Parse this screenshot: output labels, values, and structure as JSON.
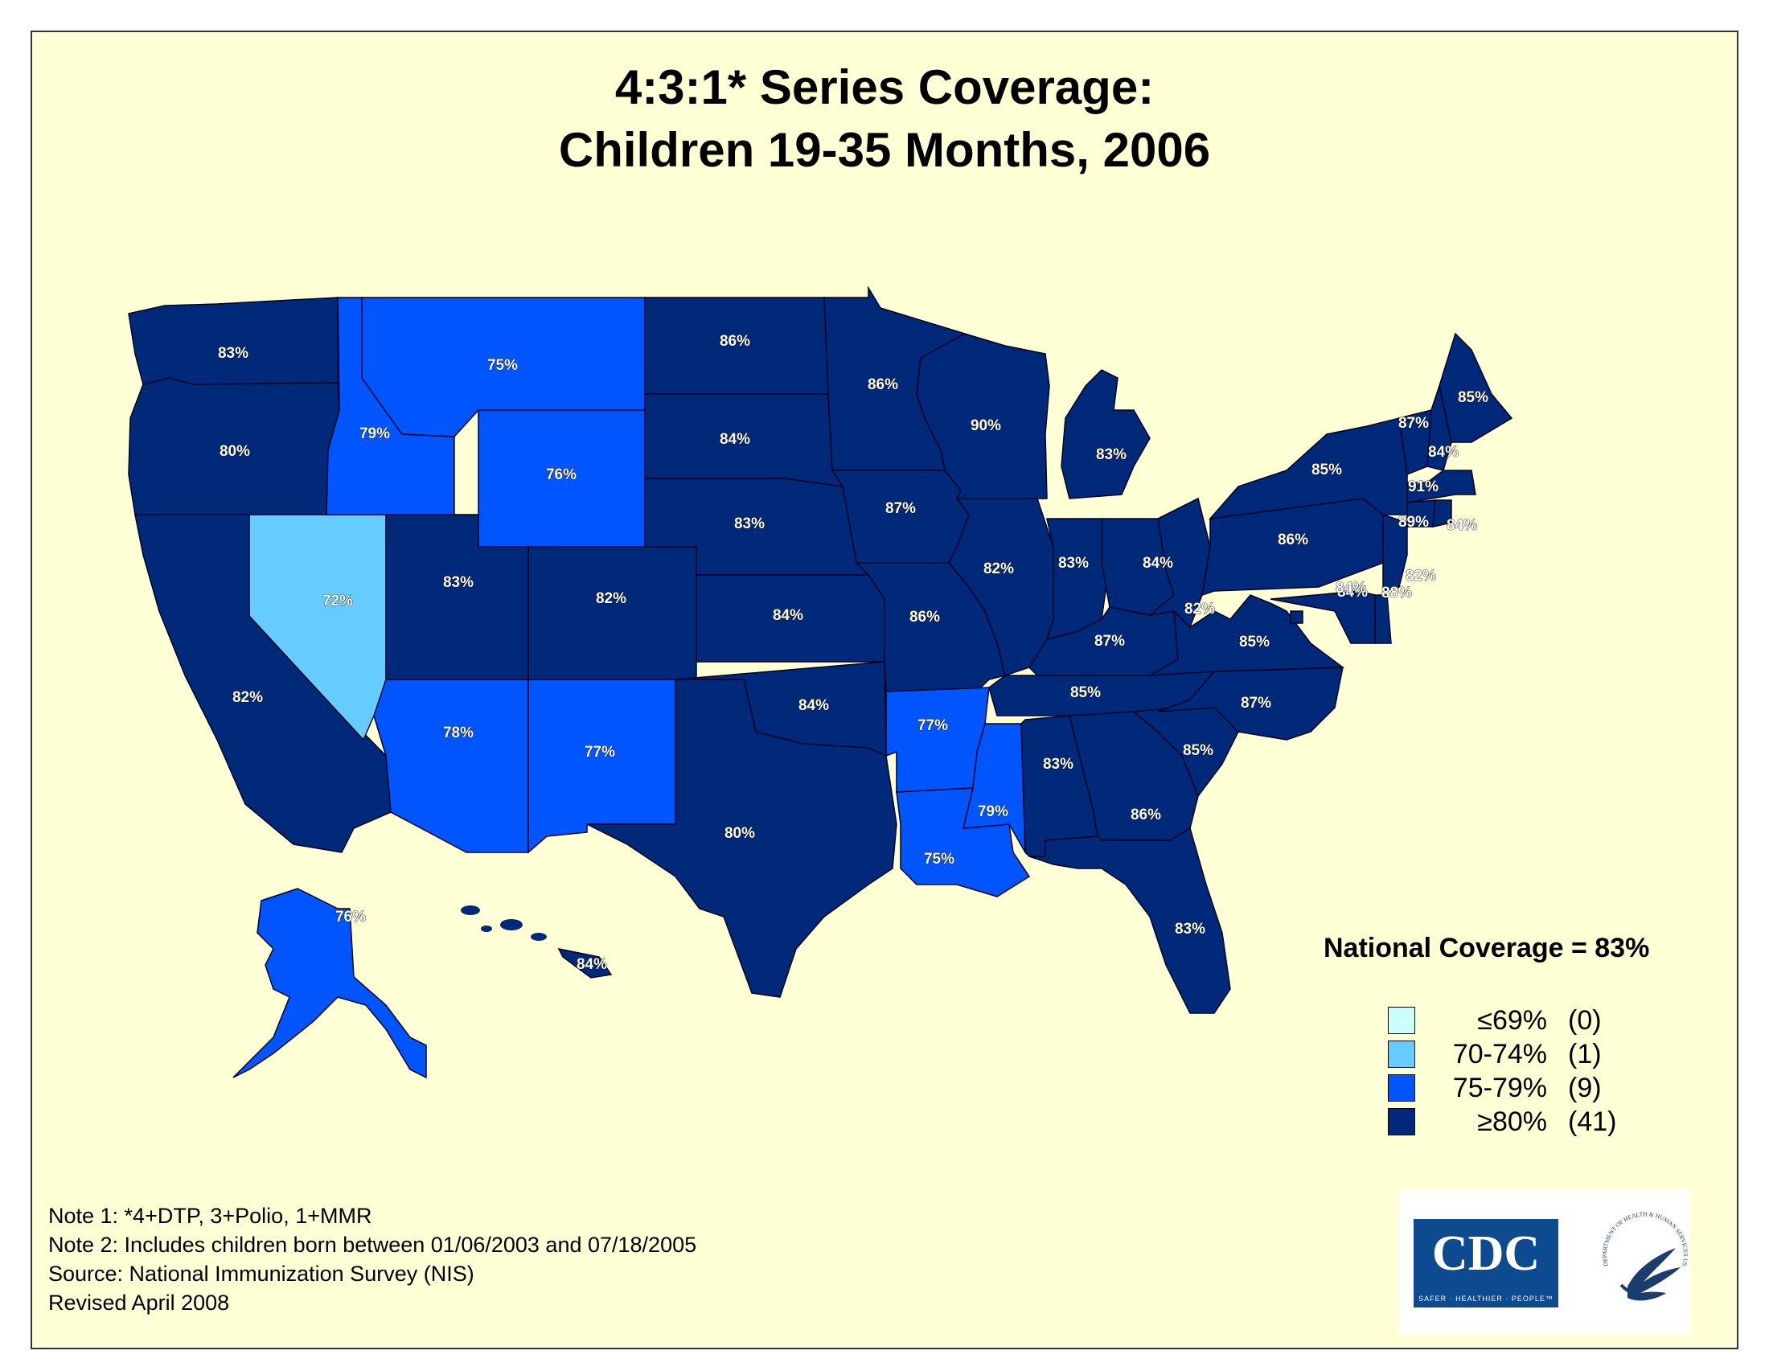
{
  "title_line1": "4:3:1* Series Coverage:",
  "title_line2": "Children 19-35 Months, 2006",
  "colors": {
    "background": "#FFFFD6",
    "range_le69": "#CCFFFF",
    "range_70_74": "#66CCFF",
    "range_75_79": "#0055FF",
    "range_ge80": "#00297A"
  },
  "legend": {
    "title": "National Coverage = 83%",
    "items": [
      {
        "range": "≤69%",
        "count": "(0)",
        "color": "#CCFFFF"
      },
      {
        "range": "70-74%",
        "count": "(1)",
        "color": "#66CCFF"
      },
      {
        "range": "75-79%",
        "count": "(9)",
        "color": "#0055FF"
      },
      {
        "range": "≥80%",
        "count": "(41)",
        "color": "#00297A"
      }
    ]
  },
  "states": {
    "WA": "83%",
    "OR": "80%",
    "CA": "82%",
    "NV": "72%",
    "ID": "79%",
    "MT": "75%",
    "WY": "76%",
    "UT": "83%",
    "AZ": "78%",
    "CO": "82%",
    "NM": "77%",
    "ND": "86%",
    "SD": "84%",
    "NE": "83%",
    "KS": "84%",
    "OK": "84%",
    "TX": "80%",
    "MN": "86%",
    "IA": "87%",
    "MO": "86%",
    "AR": "77%",
    "LA": "75%",
    "WI": "90%",
    "IL": "82%",
    "MS": "79%",
    "MI": "83%",
    "IN": "83%",
    "OH": "84%",
    "KY": "87%",
    "TN": "85%",
    "AL": "83%",
    "GA": "86%",
    "FL": "83%",
    "SC": "85%",
    "NC": "87%",
    "VA": "85%",
    "WV": "82%",
    "PA": "86%",
    "NY": "85%",
    "ME": "85%",
    "VT": "87%",
    "NH": "84%",
    "MA": "91%",
    "CT": "89%",
    "RI": "84%",
    "NJ": "82%",
    "DE": "88%",
    "MD": "84%",
    "DC": "84%",
    "AK": "76%",
    "HI": "84%"
  },
  "notes": [
    "Note 1: *4+DTP, 3+Polio, 1+MMR",
    "Note 2: Includes children born between 01/06/2003 and 07/18/2005",
    "Source: National Immunization Survey (NIS)",
    "Revised April 2008"
  ],
  "logo_cdc": "CDC",
  "logo_cdc_tagline": "SAFER · HEALTHIER · PEOPLE™",
  "logo_hhs": "DEPARTMENT OF HEALTH & HUMAN SERVICES USA"
}
